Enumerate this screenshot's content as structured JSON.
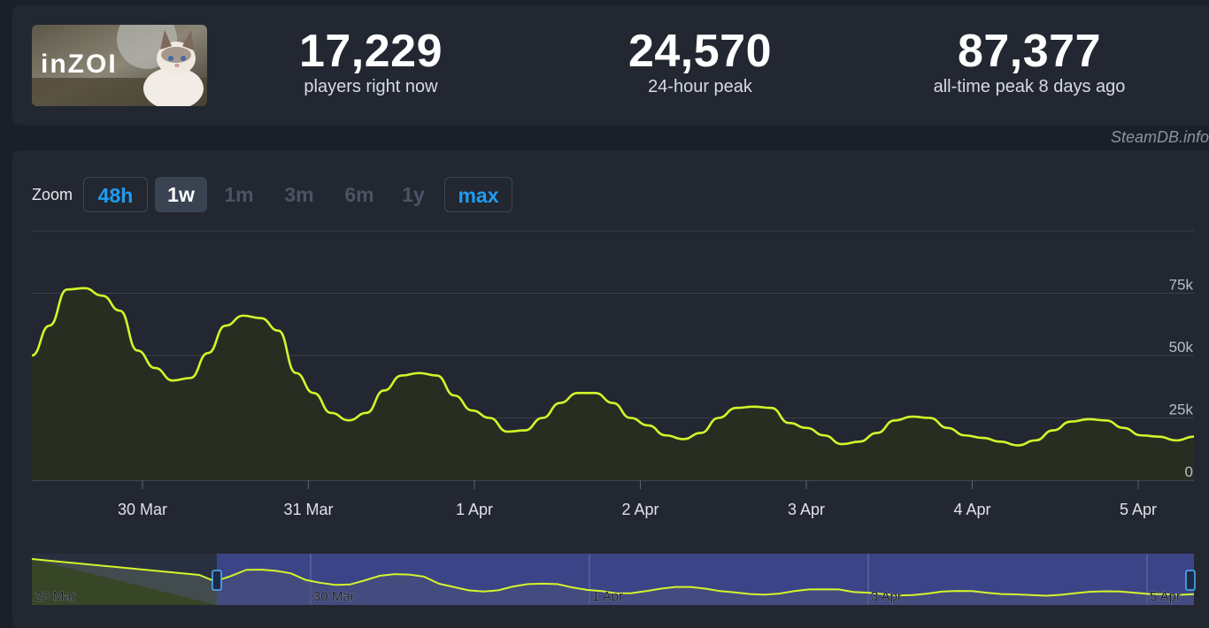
{
  "game": {
    "logo_text": "inZOI"
  },
  "stats": [
    {
      "value": "17,229",
      "label": "players right now"
    },
    {
      "value": "24,570",
      "label": "24-hour peak"
    },
    {
      "value": "87,377",
      "label": "all-time peak 8 days ago"
    }
  ],
  "watermark": "SteamDB.info",
  "zoom": {
    "label": "Zoom",
    "buttons": [
      {
        "label": "48h",
        "state": "outlined"
      },
      {
        "label": "1w",
        "state": "active"
      },
      {
        "label": "1m",
        "state": "disabled"
      },
      {
        "label": "3m",
        "state": "disabled"
      },
      {
        "label": "6m",
        "state": "disabled"
      },
      {
        "label": "1y",
        "state": "disabled"
      },
      {
        "label": "max",
        "state": "outlined"
      }
    ]
  },
  "colors": {
    "line": "#d4f52a",
    "accent": "#1f9df2",
    "navigator_selection": "#3c4488"
  },
  "chart_data": {
    "type": "line",
    "title": "",
    "xlabel": "",
    "ylabel": "",
    "ylim": [
      0,
      100000
    ],
    "y_ticks": [
      0,
      25000,
      50000,
      75000
    ],
    "y_tick_labels": [
      "0",
      "25k",
      "50k",
      "75k"
    ],
    "x_tick_labels": [
      "30 Mar",
      "31 Mar",
      "1 Apr",
      "2 Apr",
      "3 Apr",
      "4 Apr",
      "5 Apr"
    ],
    "grid": true,
    "series": [
      {
        "values": [
          50000,
          62000,
          76500,
          77000,
          74000,
          68000,
          52000,
          45000,
          40000,
          41000,
          51000,
          62000,
          66000,
          65000,
          60000,
          43000,
          35000,
          27000,
          24000,
          27000,
          36000,
          42000,
          43000,
          42000,
          34000,
          28000,
          25000,
          19500,
          20000,
          25000,
          31000,
          35000,
          35000,
          31000,
          25000,
          22000,
          18000,
          16500,
          19000,
          25000,
          29000,
          29500,
          29000,
          23000,
          21000,
          18000,
          14500,
          15500,
          19000,
          24000,
          25500,
          25000,
          21000,
          18000,
          17000,
          15500,
          14000,
          16000,
          20000,
          23500,
          24500,
          24000,
          21000,
          18000,
          17500,
          16000,
          17500
        ]
      }
    ],
    "navigator": {
      "x_tick_labels": [
        "28 Mar",
        "30 Mar",
        "1 Apr",
        "3 Apr",
        "5 Apr"
      ]
    }
  }
}
